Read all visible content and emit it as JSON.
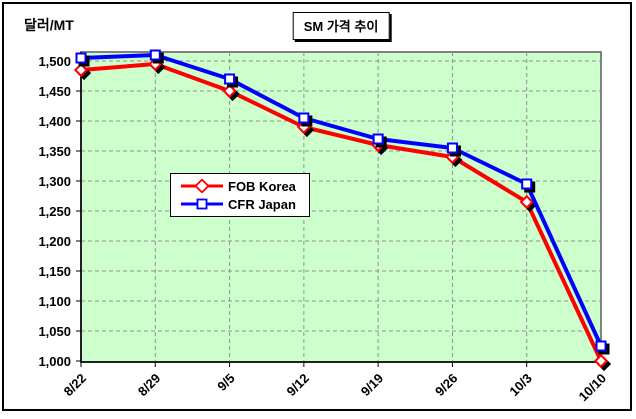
{
  "window": {
    "background": "#FFFFFF",
    "border_color": "#000000"
  },
  "chart_data": {
    "type": "line",
    "title": "SM 가격 추이",
    "y_axis_title": "달러/MT",
    "categories": [
      "8/22",
      "8/29",
      "9/5",
      "9/12",
      "9/19",
      "9/26",
      "10/3",
      "10/10"
    ],
    "series": [
      {
        "name": "FOB Korea",
        "color": "#FF0000",
        "marker": "diamond",
        "values": [
          1485,
          1495,
          1450,
          1390,
          1360,
          1340,
          1265,
          1000
        ]
      },
      {
        "name": "CFR Japan",
        "color": "#0000FF",
        "marker": "square",
        "values": [
          1505,
          1510,
          1470,
          1405,
          1370,
          1355,
          1295,
          1025
        ]
      }
    ],
    "y_ticks": [
      "1,500",
      "1,450",
      "1,400",
      "1,350",
      "1,300",
      "1,250",
      "1,200",
      "1,150",
      "1,100",
      "1,050",
      "1,000"
    ],
    "ylim": [
      1000,
      1500
    ],
    "y_step": 50,
    "grid": true,
    "legend_position": "inside-left",
    "plot_background": "#CCFFCC",
    "plot_border_color": "#808080",
    "gridline_color": "#909090",
    "axis_color": "#000000",
    "marker_fill": "#FFFFFF"
  }
}
